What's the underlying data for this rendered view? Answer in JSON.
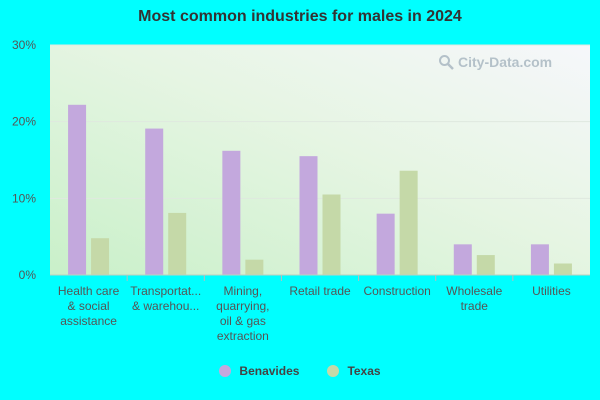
{
  "chart_data": {
    "type": "bar",
    "title": "Most common industries for males in 2024",
    "categories": [
      [
        "Health care",
        "& social",
        "assistance"
      ],
      [
        "Transportat...",
        "& warehou..."
      ],
      [
        "Mining,",
        "quarrying,",
        "oil & gas",
        "extraction"
      ],
      [
        "Retail trade"
      ],
      [
        "Construction"
      ],
      [
        "Wholesale",
        "trade"
      ],
      [
        "Utilities"
      ]
    ],
    "series": [
      {
        "name": "Benavides",
        "color": "#c3a8dd",
        "values": [
          22.2,
          19.1,
          16.2,
          15.5,
          8.0,
          4.0,
          4.0
        ]
      },
      {
        "name": "Texas",
        "color": "#c5d9a8",
        "values": [
          4.8,
          8.1,
          2.0,
          10.5,
          13.6,
          2.6,
          1.5
        ]
      }
    ],
    "ylim": [
      0,
      30
    ],
    "yticks": [
      0,
      10,
      20,
      30
    ],
    "ytick_labels": [
      "0%",
      "10%",
      "20%",
      "30%"
    ],
    "grid": true,
    "legend_position": "bottom"
  },
  "watermark": {
    "text": "City-Data.com"
  }
}
